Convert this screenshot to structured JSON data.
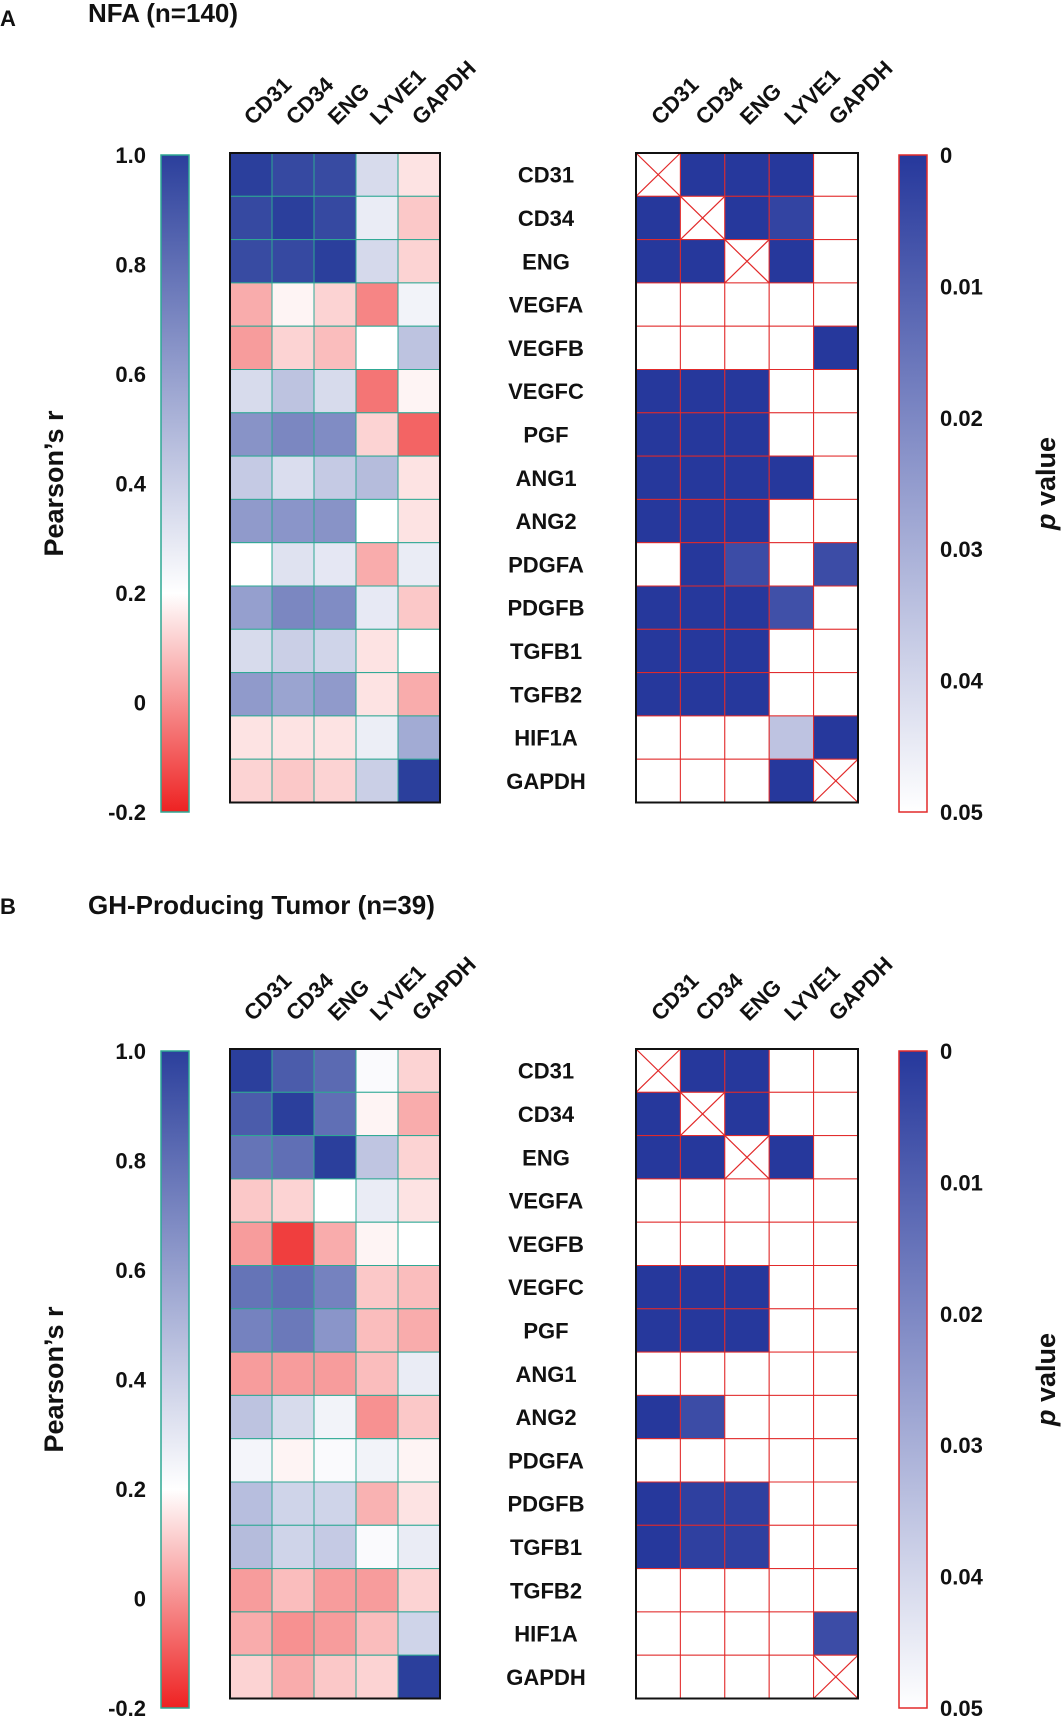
{
  "chart_data": [
    {
      "type": "heatmap",
      "panel_letter": "A",
      "title": "NFA (n=140)",
      "columns": [
        "CD31",
        "CD34",
        "ENG",
        "LYVE1",
        "GAPDH"
      ],
      "rows": [
        "CD31",
        "CD34",
        "ENG",
        "VEGFA",
        "VEGFB",
        "VEGFC",
        "PGF",
        "ANG1",
        "ANG2",
        "PDGFA",
        "PDGFB",
        "TGFB1",
        "TGFB2",
        "HIF1A",
        "GAPDH"
      ],
      "pearson_r": [
        [
          1.0,
          0.96,
          0.95,
          0.35,
          0.15
        ],
        [
          0.96,
          1.0,
          0.96,
          0.28,
          0.1
        ],
        [
          0.95,
          0.96,
          1.0,
          0.36,
          0.12
        ],
        [
          0.05,
          0.18,
          0.12,
          -0.02,
          0.25
        ],
        [
          0.02,
          0.12,
          0.08,
          0.2,
          0.45
        ],
        [
          0.35,
          0.45,
          0.35,
          -0.05,
          0.18
        ],
        [
          0.65,
          0.7,
          0.68,
          0.12,
          -0.08
        ],
        [
          0.42,
          0.34,
          0.42,
          0.48,
          0.15
        ],
        [
          0.62,
          0.64,
          0.65,
          0.2,
          0.15
        ],
        [
          0.2,
          0.32,
          0.3,
          0.05,
          0.28
        ],
        [
          0.6,
          0.7,
          0.68,
          0.29,
          0.1
        ],
        [
          0.35,
          0.4,
          0.38,
          0.15,
          0.2
        ],
        [
          0.62,
          0.58,
          0.62,
          0.15,
          0.05
        ],
        [
          0.15,
          0.15,
          0.15,
          0.27,
          0.55
        ],
        [
          0.12,
          0.1,
          0.12,
          0.4,
          1.0
        ]
      ],
      "p_value": [
        [
          null,
          0.0,
          0.0,
          0.0,
          0.05
        ],
        [
          0.0,
          null,
          0.0,
          0.003,
          0.05
        ],
        [
          0.0,
          0.0,
          null,
          0.0,
          0.05
        ],
        [
          0.05,
          0.05,
          0.05,
          0.05,
          0.05
        ],
        [
          0.05,
          0.05,
          0.05,
          0.05,
          0.0
        ],
        [
          0.0,
          0.0,
          0.0,
          0.05,
          0.05
        ],
        [
          0.0,
          0.0,
          0.0,
          0.05,
          0.05
        ],
        [
          0.0,
          0.0,
          0.0,
          0.0,
          0.05
        ],
        [
          0.0,
          0.0,
          0.0,
          0.05,
          0.05
        ],
        [
          0.05,
          0.0,
          0.005,
          0.05,
          0.005
        ],
        [
          0.0,
          0.0,
          0.0,
          0.006,
          0.05
        ],
        [
          0.0,
          0.0,
          0.0,
          0.05,
          0.05
        ],
        [
          0.0,
          0.0,
          0.0,
          0.05,
          0.05
        ],
        [
          0.05,
          0.05,
          0.05,
          0.035,
          0.0
        ],
        [
          0.05,
          0.05,
          0.05,
          0.0,
          null
        ]
      ]
    },
    {
      "type": "heatmap",
      "panel_letter": "B",
      "title": "GH-Producing Tumor (n=39)",
      "columns": [
        "CD31",
        "CD34",
        "ENG",
        "LYVE1",
        "GAPDH"
      ],
      "rows": [
        "CD31",
        "CD34",
        "ENG",
        "VEGFA",
        "VEGFB",
        "VEGFC",
        "PGF",
        "ANG1",
        "ANG2",
        "PDGFA",
        "PDGFB",
        "TGFB1",
        "TGFB2",
        "HIF1A",
        "GAPDH"
      ],
      "pearson_r": [
        [
          1.0,
          0.88,
          0.82,
          0.22,
          0.12
        ],
        [
          0.88,
          1.0,
          0.8,
          0.18,
          0.05
        ],
        [
          0.78,
          0.8,
          1.0,
          0.44,
          0.12
        ],
        [
          0.1,
          0.12,
          0.2,
          0.28,
          0.15
        ],
        [
          0.02,
          -0.15,
          0.05,
          0.18,
          0.2
        ],
        [
          0.78,
          0.8,
          0.72,
          0.1,
          0.08
        ],
        [
          0.72,
          0.76,
          0.64,
          0.08,
          0.05
        ],
        [
          0.02,
          0.02,
          0.02,
          0.08,
          0.28
        ],
        [
          0.45,
          0.35,
          0.25,
          0.0,
          0.1
        ],
        [
          0.24,
          0.18,
          0.22,
          0.25,
          0.18
        ],
        [
          0.47,
          0.38,
          0.38,
          0.06,
          0.15
        ],
        [
          0.48,
          0.38,
          0.42,
          0.22,
          0.28
        ],
        [
          0.02,
          0.08,
          0.02,
          0.02,
          0.12
        ],
        [
          0.05,
          0.0,
          0.02,
          0.08,
          0.38
        ],
        [
          0.12,
          0.05,
          0.1,
          0.12,
          1.0
        ]
      ],
      "p_value": [
        [
          null,
          0.0,
          0.0,
          0.05,
          0.05
        ],
        [
          0.0,
          null,
          0.0,
          0.05,
          0.05
        ],
        [
          0.0,
          0.0,
          null,
          0.0,
          0.05
        ],
        [
          0.05,
          0.05,
          0.05,
          0.05,
          0.05
        ],
        [
          0.05,
          0.05,
          0.05,
          0.05,
          0.05
        ],
        [
          0.0,
          0.0,
          0.0,
          0.05,
          0.05
        ],
        [
          0.0,
          0.0,
          0.0,
          0.05,
          0.05
        ],
        [
          0.05,
          0.05,
          0.05,
          0.05,
          0.05
        ],
        [
          0.0,
          0.005,
          0.05,
          0.05,
          0.05
        ],
        [
          0.05,
          0.05,
          0.05,
          0.05,
          0.05
        ],
        [
          0.0,
          0.002,
          0.002,
          0.05,
          0.05
        ],
        [
          0.0,
          0.002,
          0.002,
          0.05,
          0.05
        ],
        [
          0.05,
          0.05,
          0.05,
          0.05,
          0.05
        ],
        [
          0.05,
          0.05,
          0.05,
          0.05,
          0.005
        ],
        [
          0.05,
          0.05,
          0.05,
          0.05,
          null
        ]
      ]
    }
  ],
  "legend_r": {
    "label": "Pearson’s r",
    "range": [
      -0.2,
      1.0
    ],
    "ticks": [
      "1.0",
      "0.8",
      "0.6",
      "0.4",
      "0.2",
      "0",
      "-0.2"
    ],
    "colors": {
      "low": "#ee2222",
      "mid": "#ffffff",
      "high": "#2b3f9c"
    }
  },
  "legend_p": {
    "label_italic": "p",
    "label_rest": " value",
    "range": [
      0,
      0.05
    ],
    "ticks": [
      "0",
      "0.01",
      "0.02",
      "0.03",
      "0.04",
      "0.05"
    ],
    "colors": {
      "low": "#26389c",
      "high": "#ffffff"
    }
  },
  "colors": {
    "r_grid": "#2ea894",
    "p_grid": "#e22a2a",
    "cross": "#e22a2a"
  }
}
